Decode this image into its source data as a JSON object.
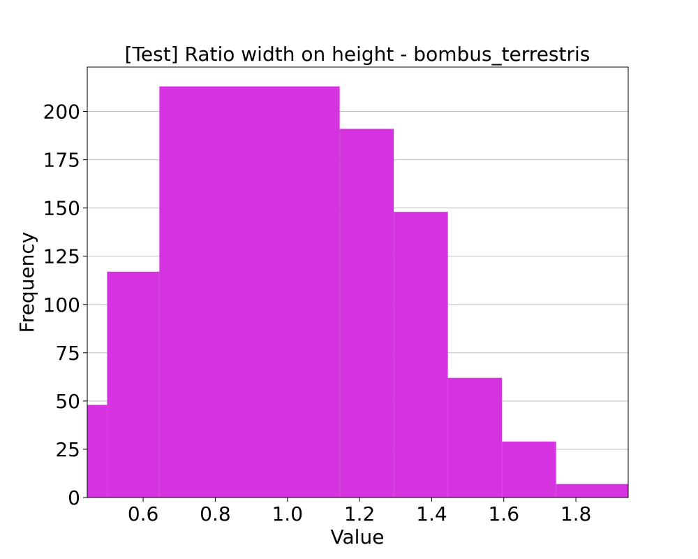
{
  "chart_data": {
    "type": "bar",
    "title": "[Test] Ratio width on height - bombus_terrestris",
    "xlabel": "Value",
    "ylabel": "Frequency",
    "bins": [
      {
        "start": 0.445,
        "end": 0.5,
        "count": 48
      },
      {
        "start": 0.5,
        "end": 0.645,
        "count": 117
      },
      {
        "start": 0.645,
        "end": 1.145,
        "count": 213
      },
      {
        "start": 1.145,
        "end": 1.295,
        "count": 191
      },
      {
        "start": 1.295,
        "end": 1.445,
        "count": 148
      },
      {
        "start": 1.445,
        "end": 1.595,
        "count": 62
      },
      {
        "start": 1.595,
        "end": 1.745,
        "count": 29
      },
      {
        "start": 1.745,
        "end": 1.945,
        "count": 7
      }
    ],
    "xlim": [
      0.445,
      1.945
    ],
    "ylim": [
      0,
      223
    ],
    "xticks": [
      0.6,
      0.8,
      1.0,
      1.2,
      1.4,
      1.6,
      1.8
    ],
    "xtick_labels": [
      "0.6",
      "0.8",
      "1.0",
      "1.2",
      "1.4",
      "1.6",
      "1.8"
    ],
    "yticks": [
      0,
      25,
      50,
      75,
      100,
      125,
      150,
      175,
      200
    ],
    "ytick_labels": [
      "0",
      "25",
      "50",
      "75",
      "100",
      "125",
      "150",
      "175",
      "200"
    ],
    "grid": "horizontal",
    "bar_color": "#d633e0"
  }
}
